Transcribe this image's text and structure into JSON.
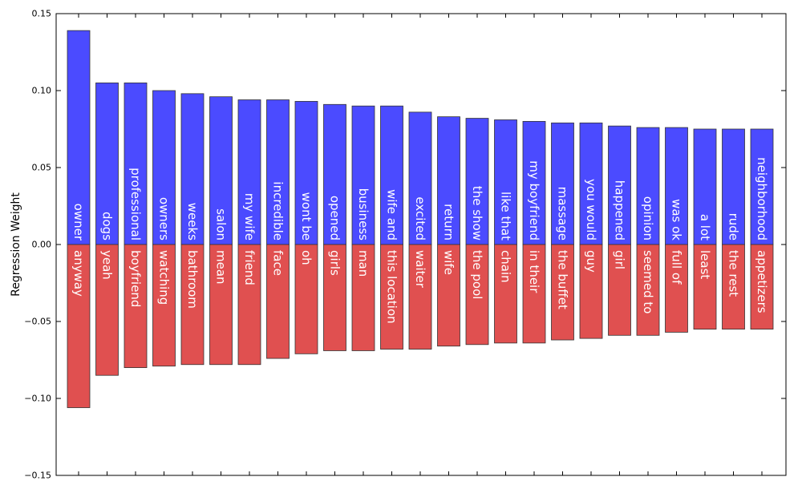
{
  "chart_data": {
    "type": "bar",
    "ylabel": "Regression Weight",
    "ylim": [
      -0.15,
      0.15
    ],
    "yticks": [
      {
        "value": 0.15,
        "label": "0.15"
      },
      {
        "value": 0.1,
        "label": "0.10"
      },
      {
        "value": 0.05,
        "label": "0.05"
      },
      {
        "value": 0.0,
        "label": "0.00"
      },
      {
        "value": -0.05,
        "label": "−0.05"
      },
      {
        "value": -0.1,
        "label": "−0.10"
      },
      {
        "value": -0.15,
        "label": "−0.15"
      }
    ],
    "positive": {
      "color": "#4b4bff",
      "labels": [
        "owner",
        "dogs",
        "professional",
        "owners",
        "weeks",
        "salon",
        "my wife",
        "incredible",
        "wont be",
        "opened",
        "business",
        "wife and",
        "excited",
        "return",
        "the show",
        "like that",
        "my boyfriend",
        "massage",
        "you would",
        "happened",
        "opinion",
        "was ok",
        "a lot",
        "rude",
        "neighborhood"
      ],
      "values": [
        0.139,
        0.105,
        0.105,
        0.1,
        0.098,
        0.096,
        0.094,
        0.094,
        0.093,
        0.091,
        0.09,
        0.09,
        0.086,
        0.083,
        0.082,
        0.081,
        0.08,
        0.079,
        0.079,
        0.077,
        0.076,
        0.076,
        0.075,
        0.075,
        0.075
      ]
    },
    "negative": {
      "color": "#e05050",
      "labels": [
        "anyway",
        "yeah",
        "boyfriend",
        "watching",
        "bathroom",
        "mean",
        "friend",
        "face",
        "oh",
        "girls",
        "man",
        "this location",
        "waiter",
        "wife",
        "the pool",
        "chain",
        "in their",
        "the buffet",
        "guy",
        "girl",
        "seemed to",
        "full of",
        "least",
        "the rest",
        "appetizers"
      ],
      "values": [
        -0.106,
        -0.085,
        -0.08,
        -0.079,
        -0.078,
        -0.078,
        -0.078,
        -0.074,
        -0.071,
        -0.069,
        -0.069,
        -0.068,
        -0.068,
        -0.066,
        -0.065,
        -0.064,
        -0.064,
        -0.062,
        -0.061,
        -0.059,
        -0.059,
        -0.057,
        -0.055,
        -0.055,
        -0.055
      ]
    }
  }
}
